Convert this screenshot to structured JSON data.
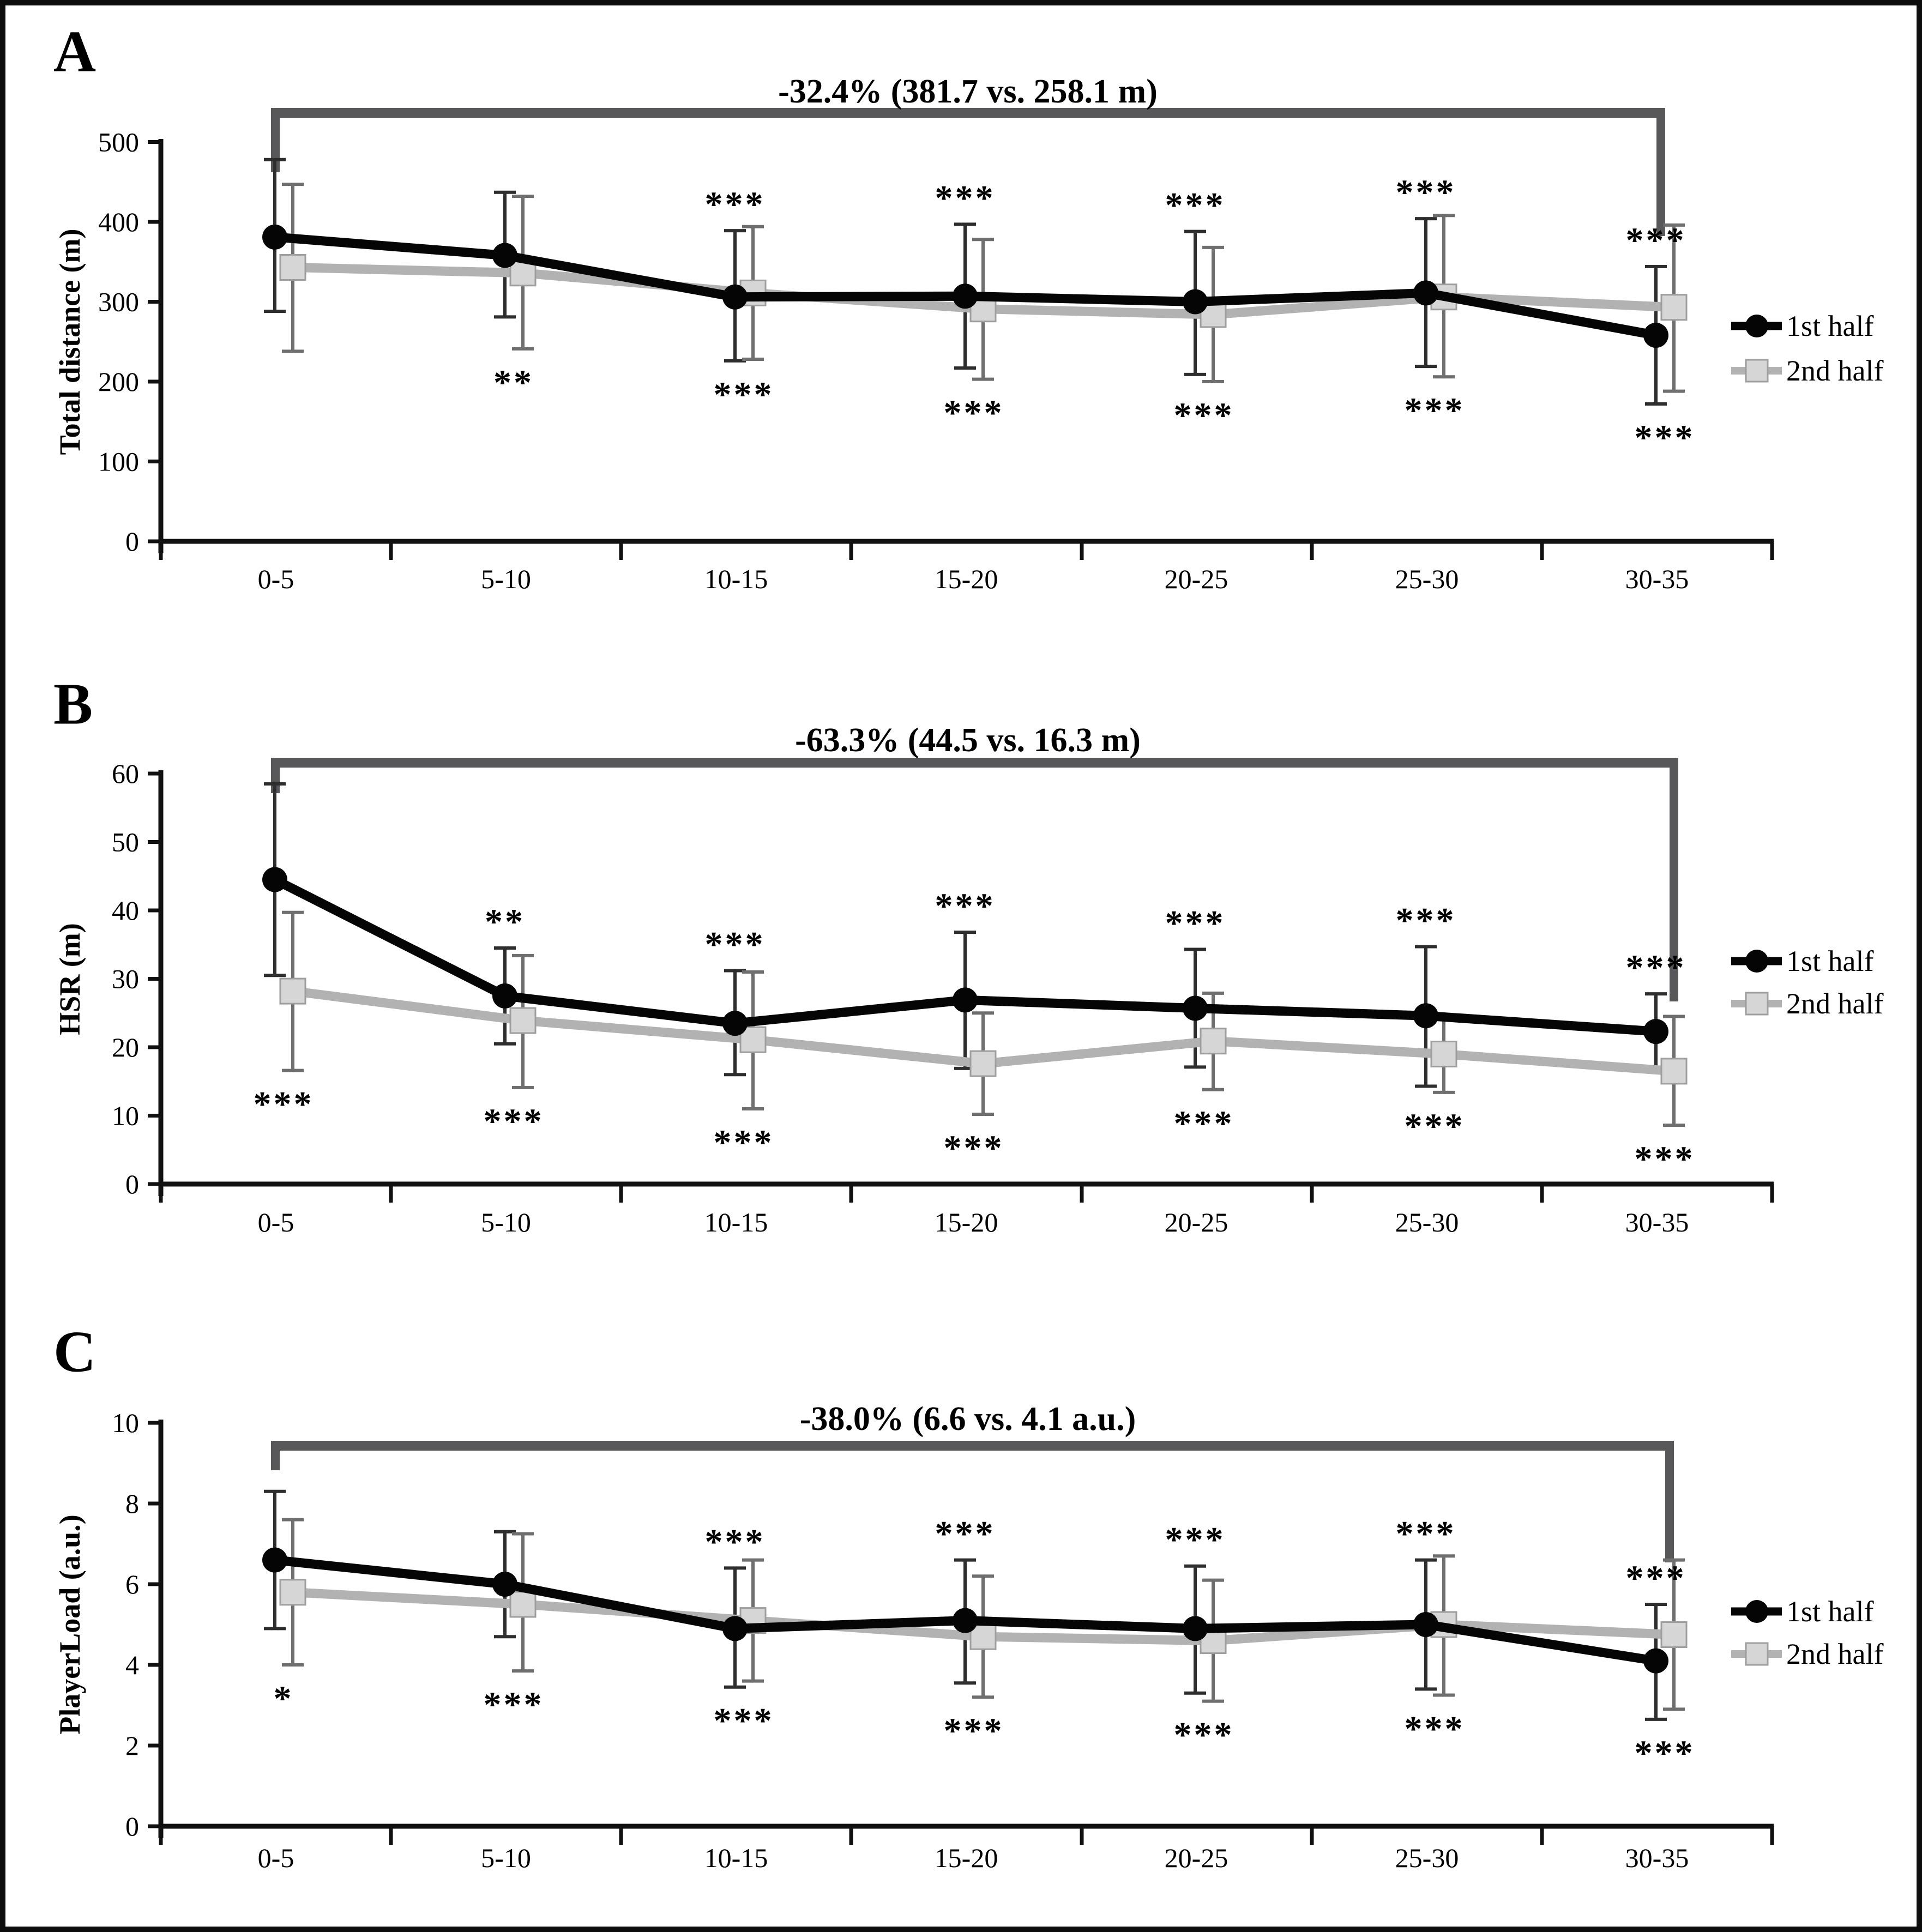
{
  "figure": {
    "kind": "three-panel line chart with error bars",
    "x_axis_shared_categories": [
      "0-5",
      "5-10",
      "10-15",
      "15-20",
      "20-25",
      "25-30",
      "30-35"
    ],
    "legend": {
      "items": [
        "1st half",
        "2nd half"
      ]
    },
    "colors": {
      "first_half_line": "#050505",
      "first_half_error": "#2e2e2e",
      "second_half_line": "#b2b2b2",
      "second_half_marker_fill": "#d6d6d6",
      "second_half_marker_stroke": "#9e9e9e",
      "second_half_error": "#6f6f6f",
      "bracket": "#58585a",
      "axis": "#111111",
      "text": "#000000"
    }
  },
  "chart_data": [
    {
      "type": "line",
      "panel_label": "A",
      "title": "-32.4% (381.7 vs. 258.1 m)",
      "ylabel": "Total distance (m)",
      "xlabel": "",
      "ylim": [
        0,
        500
      ],
      "y_ticks": [
        0,
        100,
        200,
        300,
        400,
        500
      ],
      "grid": false,
      "legend_position": "right",
      "categories": [
        "0-5",
        "5-10",
        "10-15",
        "15-20",
        "20-25",
        "25-30",
        "30-35"
      ],
      "series": [
        {
          "name": "1st half",
          "marker": "circle",
          "values": [
            381,
            358,
            306,
            307,
            300,
            311,
            258
          ],
          "err_up": [
            478,
            437,
            389,
            397,
            388,
            404,
            344
          ],
          "err_dn": [
            288,
            281,
            226,
            217,
            209,
            219,
            172
          ],
          "sig_vs_first": [
            null,
            null,
            "***",
            "***",
            "***",
            "***",
            "***"
          ]
        },
        {
          "name": "2nd half",
          "marker": "square",
          "values": [
            343,
            336,
            311,
            291,
            284,
            306,
            293
          ],
          "err_up": [
            447,
            432,
            394,
            378,
            368,
            408,
            396
          ],
          "err_dn": [
            238,
            241,
            228,
            203,
            200,
            206,
            188
          ],
          "sig_vs_first": [
            null,
            "**",
            "***",
            "***",
            "***",
            "***",
            "***"
          ]
        }
      ]
    },
    {
      "type": "line",
      "panel_label": "B",
      "title": "-63.3% (44.5 vs. 16.3 m)",
      "ylabel": "HSR (m)",
      "xlabel": "",
      "ylim": [
        0,
        60
      ],
      "y_ticks": [
        0,
        10,
        20,
        30,
        40,
        50,
        60
      ],
      "grid": false,
      "legend_position": "right",
      "categories": [
        "0-5",
        "5-10",
        "10-15",
        "15-20",
        "20-25",
        "25-30",
        "30-35"
      ],
      "series": [
        {
          "name": "1st half",
          "marker": "circle",
          "values": [
            44.5,
            27.5,
            23.5,
            26.9,
            25.7,
            24.6,
            22.3
          ],
          "err_up": [
            58.5,
            34.5,
            31.2,
            36.8,
            34.3,
            34.7,
            27.8
          ],
          "err_dn": [
            30.5,
            20.5,
            16.0,
            16.9,
            17.1,
            14.3,
            17.0
          ],
          "sig_vs_first": [
            null,
            "**",
            "***",
            "***",
            "***",
            "***",
            "***"
          ]
        },
        {
          "name": "2nd half",
          "marker": "square",
          "values": [
            28.2,
            23.9,
            21.1,
            17.6,
            20.9,
            19.0,
            16.5
          ],
          "err_up": [
            39.7,
            33.4,
            31.0,
            25.0,
            27.9,
            24.6,
            24.5
          ],
          "err_dn": [
            16.6,
            14.1,
            11.0,
            10.2,
            13.8,
            13.4,
            8.6
          ],
          "sig_vs_first": [
            "***",
            "***",
            "***",
            "***",
            "***",
            "***",
            "***"
          ]
        }
      ]
    },
    {
      "type": "line",
      "panel_label": "C",
      "title": "-38.0% (6.6 vs. 4.1 a.u.)",
      "ylabel": "PlayerLoad (a.u.)",
      "xlabel": "",
      "ylim": [
        0,
        10
      ],
      "y_ticks": [
        0,
        2,
        4,
        6,
        8,
        10
      ],
      "grid": false,
      "legend_position": "right",
      "categories": [
        "0-5",
        "5-10",
        "10-15",
        "15-20",
        "20-25",
        "25-30",
        "30-35"
      ],
      "series": [
        {
          "name": "1st half",
          "marker": "circle",
          "values": [
            6.6,
            6.0,
            4.9,
            5.1,
            4.9,
            5.0,
            4.1
          ],
          "err_up": [
            8.3,
            7.3,
            6.4,
            6.6,
            6.45,
            6.6,
            5.5
          ],
          "err_dn": [
            4.9,
            4.7,
            3.45,
            3.55,
            3.3,
            3.4,
            2.65
          ],
          "sig_vs_first": [
            null,
            null,
            "***",
            "***",
            "***",
            "***",
            "***"
          ]
        },
        {
          "name": "2nd half",
          "marker": "square",
          "values": [
            5.8,
            5.5,
            5.1,
            4.7,
            4.6,
            5.0,
            4.75
          ],
          "err_up": [
            7.6,
            7.25,
            6.6,
            6.2,
            6.1,
            6.7,
            6.6
          ],
          "err_dn": [
            4.0,
            3.85,
            3.6,
            3.2,
            3.1,
            3.25,
            2.9
          ],
          "sig_vs_first": [
            "*",
            "***",
            "***",
            "***",
            "***",
            "***",
            "***"
          ]
        }
      ]
    }
  ]
}
